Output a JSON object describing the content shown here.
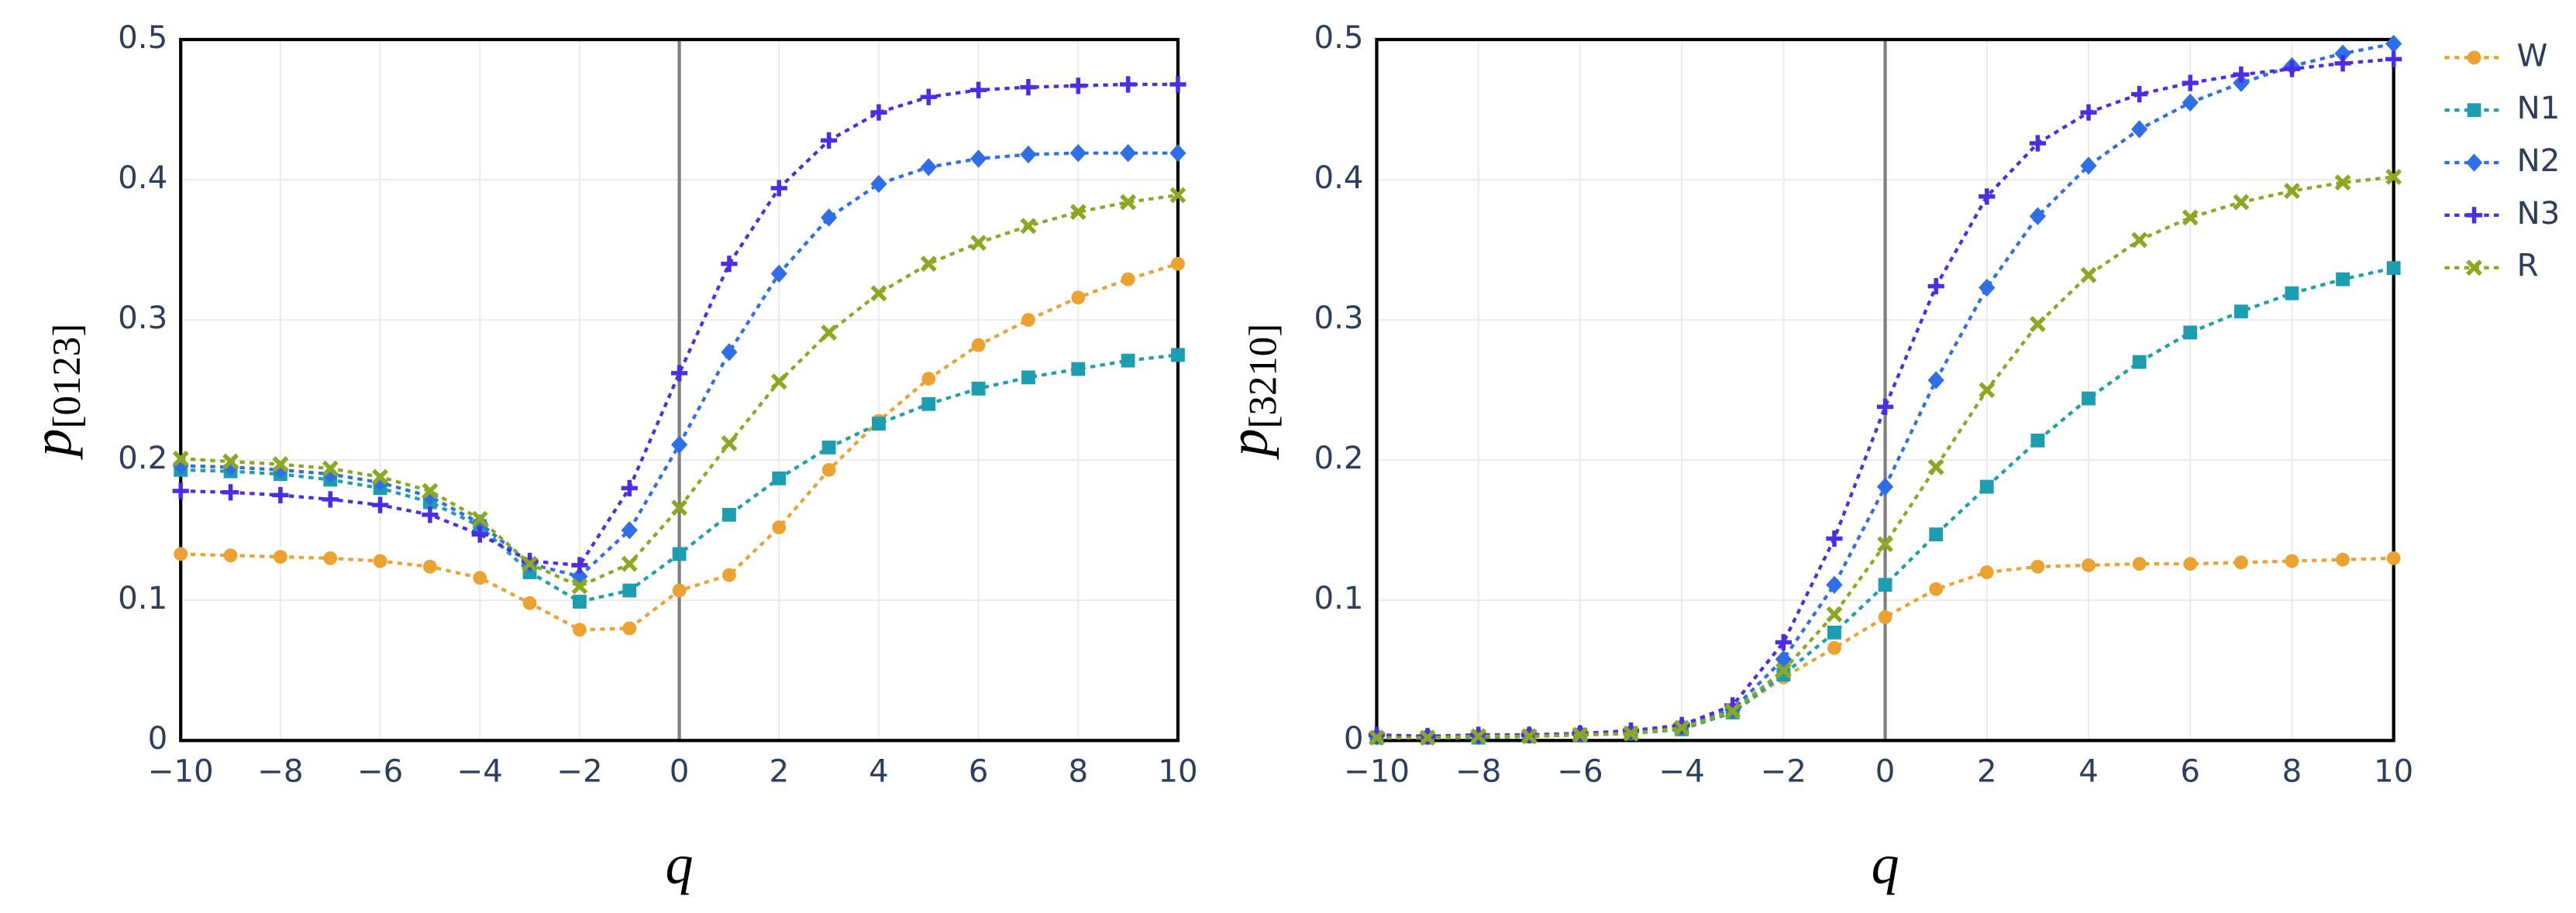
{
  "chart_data": [
    {
      "type": "line",
      "xlabel": "q",
      "ylabel": {
        "main": "p",
        "subscript": "[0123]"
      },
      "x": [
        -10,
        -9,
        -8,
        -7,
        -6,
        -5,
        -4,
        -3,
        -2,
        -1,
        0,
        1,
        2,
        3,
        4,
        5,
        6,
        7,
        8,
        9,
        10
      ],
      "xlim": [
        -10,
        10
      ],
      "xticks": [
        {
          "value": -10,
          "label": "−10"
        },
        {
          "value": -8,
          "label": "−8"
        },
        {
          "value": -6,
          "label": "−6"
        },
        {
          "value": -4,
          "label": "−4"
        },
        {
          "value": -2,
          "label": "−2"
        },
        0,
        2,
        4,
        6,
        8,
        10
      ],
      "ylim": [
        0,
        0.5
      ],
      "yticks": [
        0,
        0.1,
        0.2,
        0.3,
        0.4,
        0.5
      ],
      "grid": true,
      "zeroline": true,
      "series": [
        {
          "name": "W",
          "color": "#eca230",
          "symbol": "circle",
          "values": [
            0.133,
            0.132,
            0.131,
            0.13,
            0.128,
            0.124,
            0.116,
            0.098,
            0.079,
            0.08,
            0.107,
            0.118,
            0.152,
            0.193,
            0.228,
            0.258,
            0.282,
            0.3,
            0.316,
            0.329,
            0.34
          ]
        },
        {
          "name": "N1",
          "color": "#1d9db0",
          "symbol": "square",
          "values": [
            0.193,
            0.192,
            0.19,
            0.186,
            0.18,
            0.17,
            0.153,
            0.12,
            0.099,
            0.107,
            0.133,
            0.161,
            0.187,
            0.209,
            0.226,
            0.24,
            0.251,
            0.259,
            0.265,
            0.271,
            0.275
          ]
        },
        {
          "name": "N2",
          "color": "#2e6ee6",
          "symbol": "diamond",
          "values": [
            0.196,
            0.195,
            0.193,
            0.19,
            0.184,
            0.174,
            0.155,
            0.126,
            0.117,
            0.15,
            0.211,
            0.277,
            0.333,
            0.373,
            0.397,
            0.409,
            0.415,
            0.418,
            0.419,
            0.419,
            0.419
          ]
        },
        {
          "name": "N3",
          "color": "#4a2de4",
          "symbol": "cross",
          "values": [
            0.178,
            0.177,
            0.175,
            0.172,
            0.168,
            0.161,
            0.147,
            0.128,
            0.125,
            0.18,
            0.262,
            0.34,
            0.394,
            0.428,
            0.448,
            0.459,
            0.464,
            0.466,
            0.467,
            0.468,
            0.468
          ]
        },
        {
          "name": "R",
          "color": "#8aa820",
          "symbol": "x",
          "values": [
            0.201,
            0.199,
            0.197,
            0.194,
            0.188,
            0.178,
            0.158,
            0.126,
            0.11,
            0.126,
            0.166,
            0.212,
            0.256,
            0.291,
            0.319,
            0.34,
            0.355,
            0.367,
            0.377,
            0.384,
            0.389
          ]
        }
      ]
    },
    {
      "type": "line",
      "xlabel": "q",
      "ylabel": {
        "main": "p",
        "subscript": "[3210]"
      },
      "x": [
        -10,
        -9,
        -8,
        -7,
        -6,
        -5,
        -4,
        -3,
        -2,
        -1,
        0,
        1,
        2,
        3,
        4,
        5,
        6,
        7,
        8,
        9,
        10
      ],
      "xlim": [
        -10,
        10
      ],
      "xticks": [
        {
          "value": -10,
          "label": "−10"
        },
        {
          "value": -8,
          "label": "−8"
        },
        {
          "value": -6,
          "label": "−6"
        },
        {
          "value": -4,
          "label": "−4"
        },
        {
          "value": -2,
          "label": "−2"
        },
        0,
        2,
        4,
        6,
        8,
        10
      ],
      "ylim": [
        0,
        0.5
      ],
      "yticks": [
        0,
        0.1,
        0.2,
        0.3,
        0.4,
        0.5
      ],
      "grid": true,
      "zeroline": true,
      "legend": "outside-right",
      "series": [
        {
          "name": "W",
          "color": "#eca230",
          "symbol": "circle",
          "values": [
            0.002,
            0.002,
            0.002,
            0.003,
            0.004,
            0.005,
            0.008,
            0.02,
            0.045,
            0.066,
            0.088,
            0.108,
            0.12,
            0.124,
            0.125,
            0.126,
            0.126,
            0.127,
            0.128,
            0.129,
            0.13
          ]
        },
        {
          "name": "N1",
          "color": "#1d9db0",
          "symbol": "square",
          "values": [
            0.002,
            0.002,
            0.002,
            0.003,
            0.004,
            0.005,
            0.008,
            0.02,
            0.047,
            0.077,
            0.111,
            0.147,
            0.181,
            0.214,
            0.244,
            0.27,
            0.291,
            0.306,
            0.319,
            0.329,
            0.337
          ]
        },
        {
          "name": "N2",
          "color": "#2e6ee6",
          "symbol": "diamond",
          "values": [
            0.003,
            0.003,
            0.003,
            0.004,
            0.005,
            0.006,
            0.01,
            0.022,
            0.058,
            0.111,
            0.181,
            0.257,
            0.323,
            0.374,
            0.41,
            0.436,
            0.455,
            0.469,
            0.481,
            0.49,
            0.497
          ]
        },
        {
          "name": "N3",
          "color": "#4a2de4",
          "symbol": "cross",
          "values": [
            0.004,
            0.003,
            0.004,
            0.004,
            0.005,
            0.007,
            0.011,
            0.025,
            0.07,
            0.144,
            0.238,
            0.324,
            0.388,
            0.426,
            0.448,
            0.461,
            0.469,
            0.475,
            0.479,
            0.483,
            0.486
          ]
        },
        {
          "name": "R",
          "color": "#8aa820",
          "symbol": "x",
          "values": [
            0.002,
            0.002,
            0.003,
            0.003,
            0.004,
            0.005,
            0.009,
            0.021,
            0.05,
            0.09,
            0.14,
            0.195,
            0.25,
            0.297,
            0.332,
            0.357,
            0.373,
            0.384,
            0.392,
            0.398,
            0.402
          ]
        }
      ]
    }
  ]
}
